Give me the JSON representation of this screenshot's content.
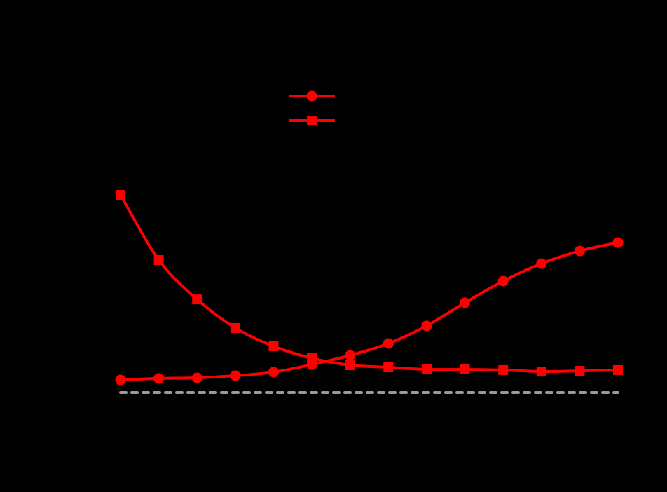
{
  "chart_data": {
    "type": "line",
    "categories": [
      null,
      null,
      null,
      null,
      null,
      null,
      null,
      null,
      null,
      null,
      null,
      null,
      null,
      null
    ],
    "series": [
      {
        "color": "#ff0000",
        "marker": "circle",
        "values": [
          0.06,
          0.067,
          0.07,
          0.08,
          0.097,
          0.133,
          0.177,
          0.233,
          0.317,
          0.427,
          0.53,
          0.613,
          0.673,
          0.713
        ]
      },
      {
        "color": "#ff0000",
        "marker": "square",
        "values": [
          0.94,
          0.63,
          0.443,
          0.307,
          0.22,
          0.163,
          0.13,
          0.12,
          0.11,
          0.11,
          0.107,
          0.1,
          0.103,
          0.107
        ]
      }
    ],
    "ylim": [
      0,
      1
    ],
    "reference_line": {
      "value": 0,
      "color": "#999999"
    },
    "legend": "top",
    "background": "#000000"
  }
}
